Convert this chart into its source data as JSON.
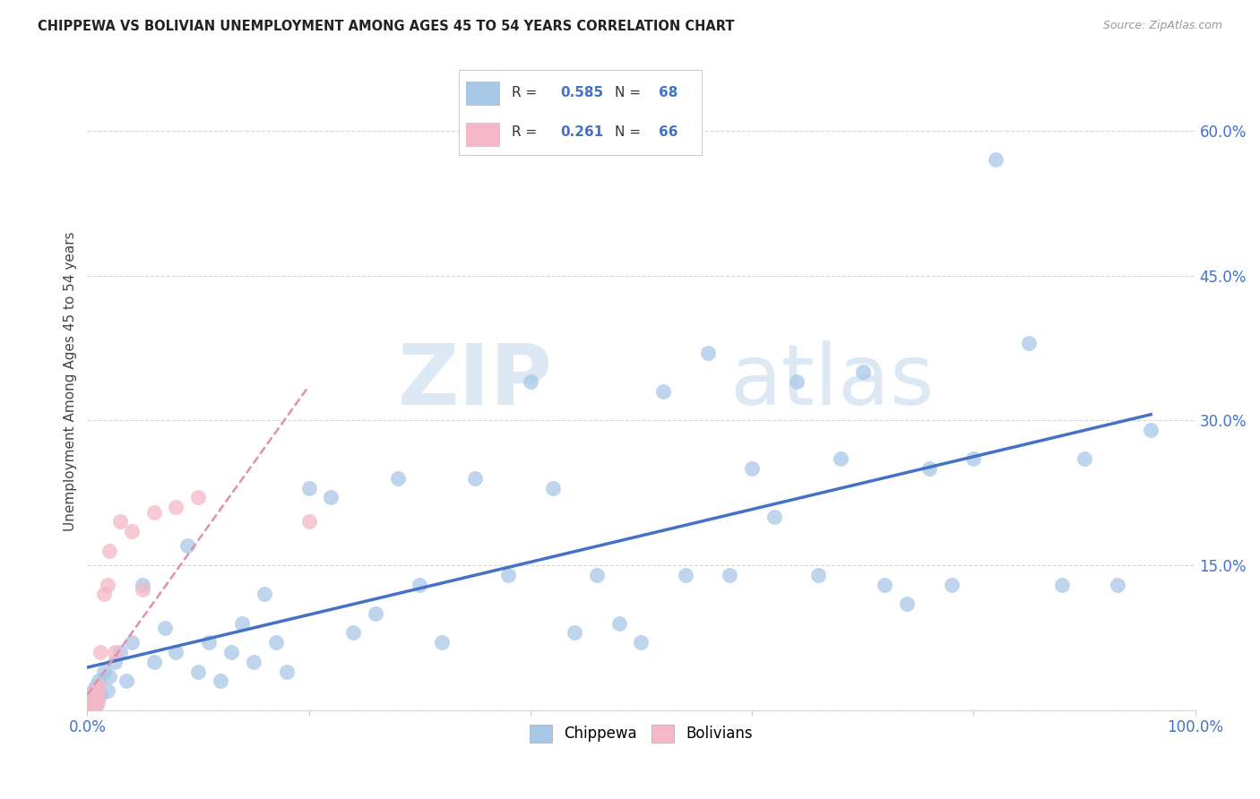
{
  "title": "CHIPPEWA VS BOLIVIAN UNEMPLOYMENT AMONG AGES 45 TO 54 YEARS CORRELATION CHART",
  "source": "Source: ZipAtlas.com",
  "ylabel": "Unemployment Among Ages 45 to 54 years",
  "xlim": [
    0,
    1.0
  ],
  "ylim": [
    0,
    0.68
  ],
  "chippewa_color": "#a8c8e8",
  "bolivian_color": "#f4b8c8",
  "chippewa_line_color": "#4472c4",
  "bolivian_line_color": "#e8a0b0",
  "watermark_zip": "ZIP",
  "watermark_atlas": "atlas",
  "chippewa_x": [
    0.001,
    0.002,
    0.003,
    0.004,
    0.005,
    0.006,
    0.007,
    0.008,
    0.009,
    0.01,
    0.012,
    0.015,
    0.018,
    0.02,
    0.025,
    0.03,
    0.035,
    0.04,
    0.05,
    0.06,
    0.07,
    0.08,
    0.09,
    0.1,
    0.11,
    0.12,
    0.13,
    0.14,
    0.15,
    0.16,
    0.17,
    0.18,
    0.2,
    0.22,
    0.24,
    0.26,
    0.28,
    0.3,
    0.32,
    0.35,
    0.38,
    0.4,
    0.42,
    0.44,
    0.46,
    0.48,
    0.5,
    0.52,
    0.54,
    0.56,
    0.58,
    0.6,
    0.62,
    0.64,
    0.66,
    0.68,
    0.7,
    0.72,
    0.74,
    0.76,
    0.78,
    0.8,
    0.82,
    0.85,
    0.88,
    0.9,
    0.93,
    0.96
  ],
  "chippewa_y": [
    0.01,
    0.015,
    0.008,
    0.012,
    0.02,
    0.005,
    0.018,
    0.025,
    0.01,
    0.03,
    0.015,
    0.04,
    0.02,
    0.035,
    0.05,
    0.06,
    0.03,
    0.07,
    0.13,
    0.05,
    0.085,
    0.06,
    0.17,
    0.04,
    0.07,
    0.03,
    0.06,
    0.09,
    0.05,
    0.12,
    0.07,
    0.04,
    0.23,
    0.22,
    0.08,
    0.1,
    0.24,
    0.13,
    0.07,
    0.24,
    0.14,
    0.34,
    0.23,
    0.08,
    0.14,
    0.09,
    0.07,
    0.33,
    0.14,
    0.37,
    0.14,
    0.25,
    0.2,
    0.34,
    0.14,
    0.26,
    0.35,
    0.13,
    0.11,
    0.25,
    0.13,
    0.26,
    0.57,
    0.38,
    0.13,
    0.26,
    0.13,
    0.29
  ],
  "bolivian_x": [
    0.0002,
    0.0003,
    0.0004,
    0.0005,
    0.0006,
    0.0007,
    0.0008,
    0.0009,
    0.001,
    0.0011,
    0.0012,
    0.0013,
    0.0014,
    0.0015,
    0.0016,
    0.0017,
    0.0018,
    0.0019,
    0.002,
    0.0021,
    0.0022,
    0.0023,
    0.0024,
    0.0025,
    0.0026,
    0.0027,
    0.0028,
    0.0029,
    0.003,
    0.0031,
    0.0032,
    0.0033,
    0.0034,
    0.0035,
    0.0036,
    0.0037,
    0.0038,
    0.0039,
    0.004,
    0.0042,
    0.0044,
    0.0046,
    0.0048,
    0.005,
    0.0055,
    0.006,
    0.0065,
    0.007,
    0.0075,
    0.008,
    0.0085,
    0.009,
    0.0095,
    0.01,
    0.012,
    0.015,
    0.018,
    0.02,
    0.025,
    0.03,
    0.04,
    0.05,
    0.06,
    0.08,
    0.1,
    0.2
  ],
  "bolivian_y": [
    0.002,
    0.005,
    0.008,
    0.003,
    0.01,
    0.006,
    0.012,
    0.004,
    0.015,
    0.007,
    0.01,
    0.003,
    0.008,
    0.013,
    0.005,
    0.009,
    0.012,
    0.004,
    0.007,
    0.011,
    0.006,
    0.014,
    0.009,
    0.003,
    0.008,
    0.013,
    0.005,
    0.01,
    0.007,
    0.012,
    0.004,
    0.009,
    0.006,
    0.011,
    0.014,
    0.003,
    0.008,
    0.012,
    0.005,
    0.01,
    0.007,
    0.013,
    0.006,
    0.009,
    0.015,
    0.01,
    0.008,
    0.014,
    0.005,
    0.02,
    0.012,
    0.018,
    0.007,
    0.025,
    0.06,
    0.12,
    0.13,
    0.165,
    0.06,
    0.195,
    0.185,
    0.125,
    0.205,
    0.21,
    0.22,
    0.195
  ],
  "chippewa_R": "0.585",
  "chippewa_N": "68",
  "bolivian_R": "0.261",
  "bolivian_N": "66"
}
